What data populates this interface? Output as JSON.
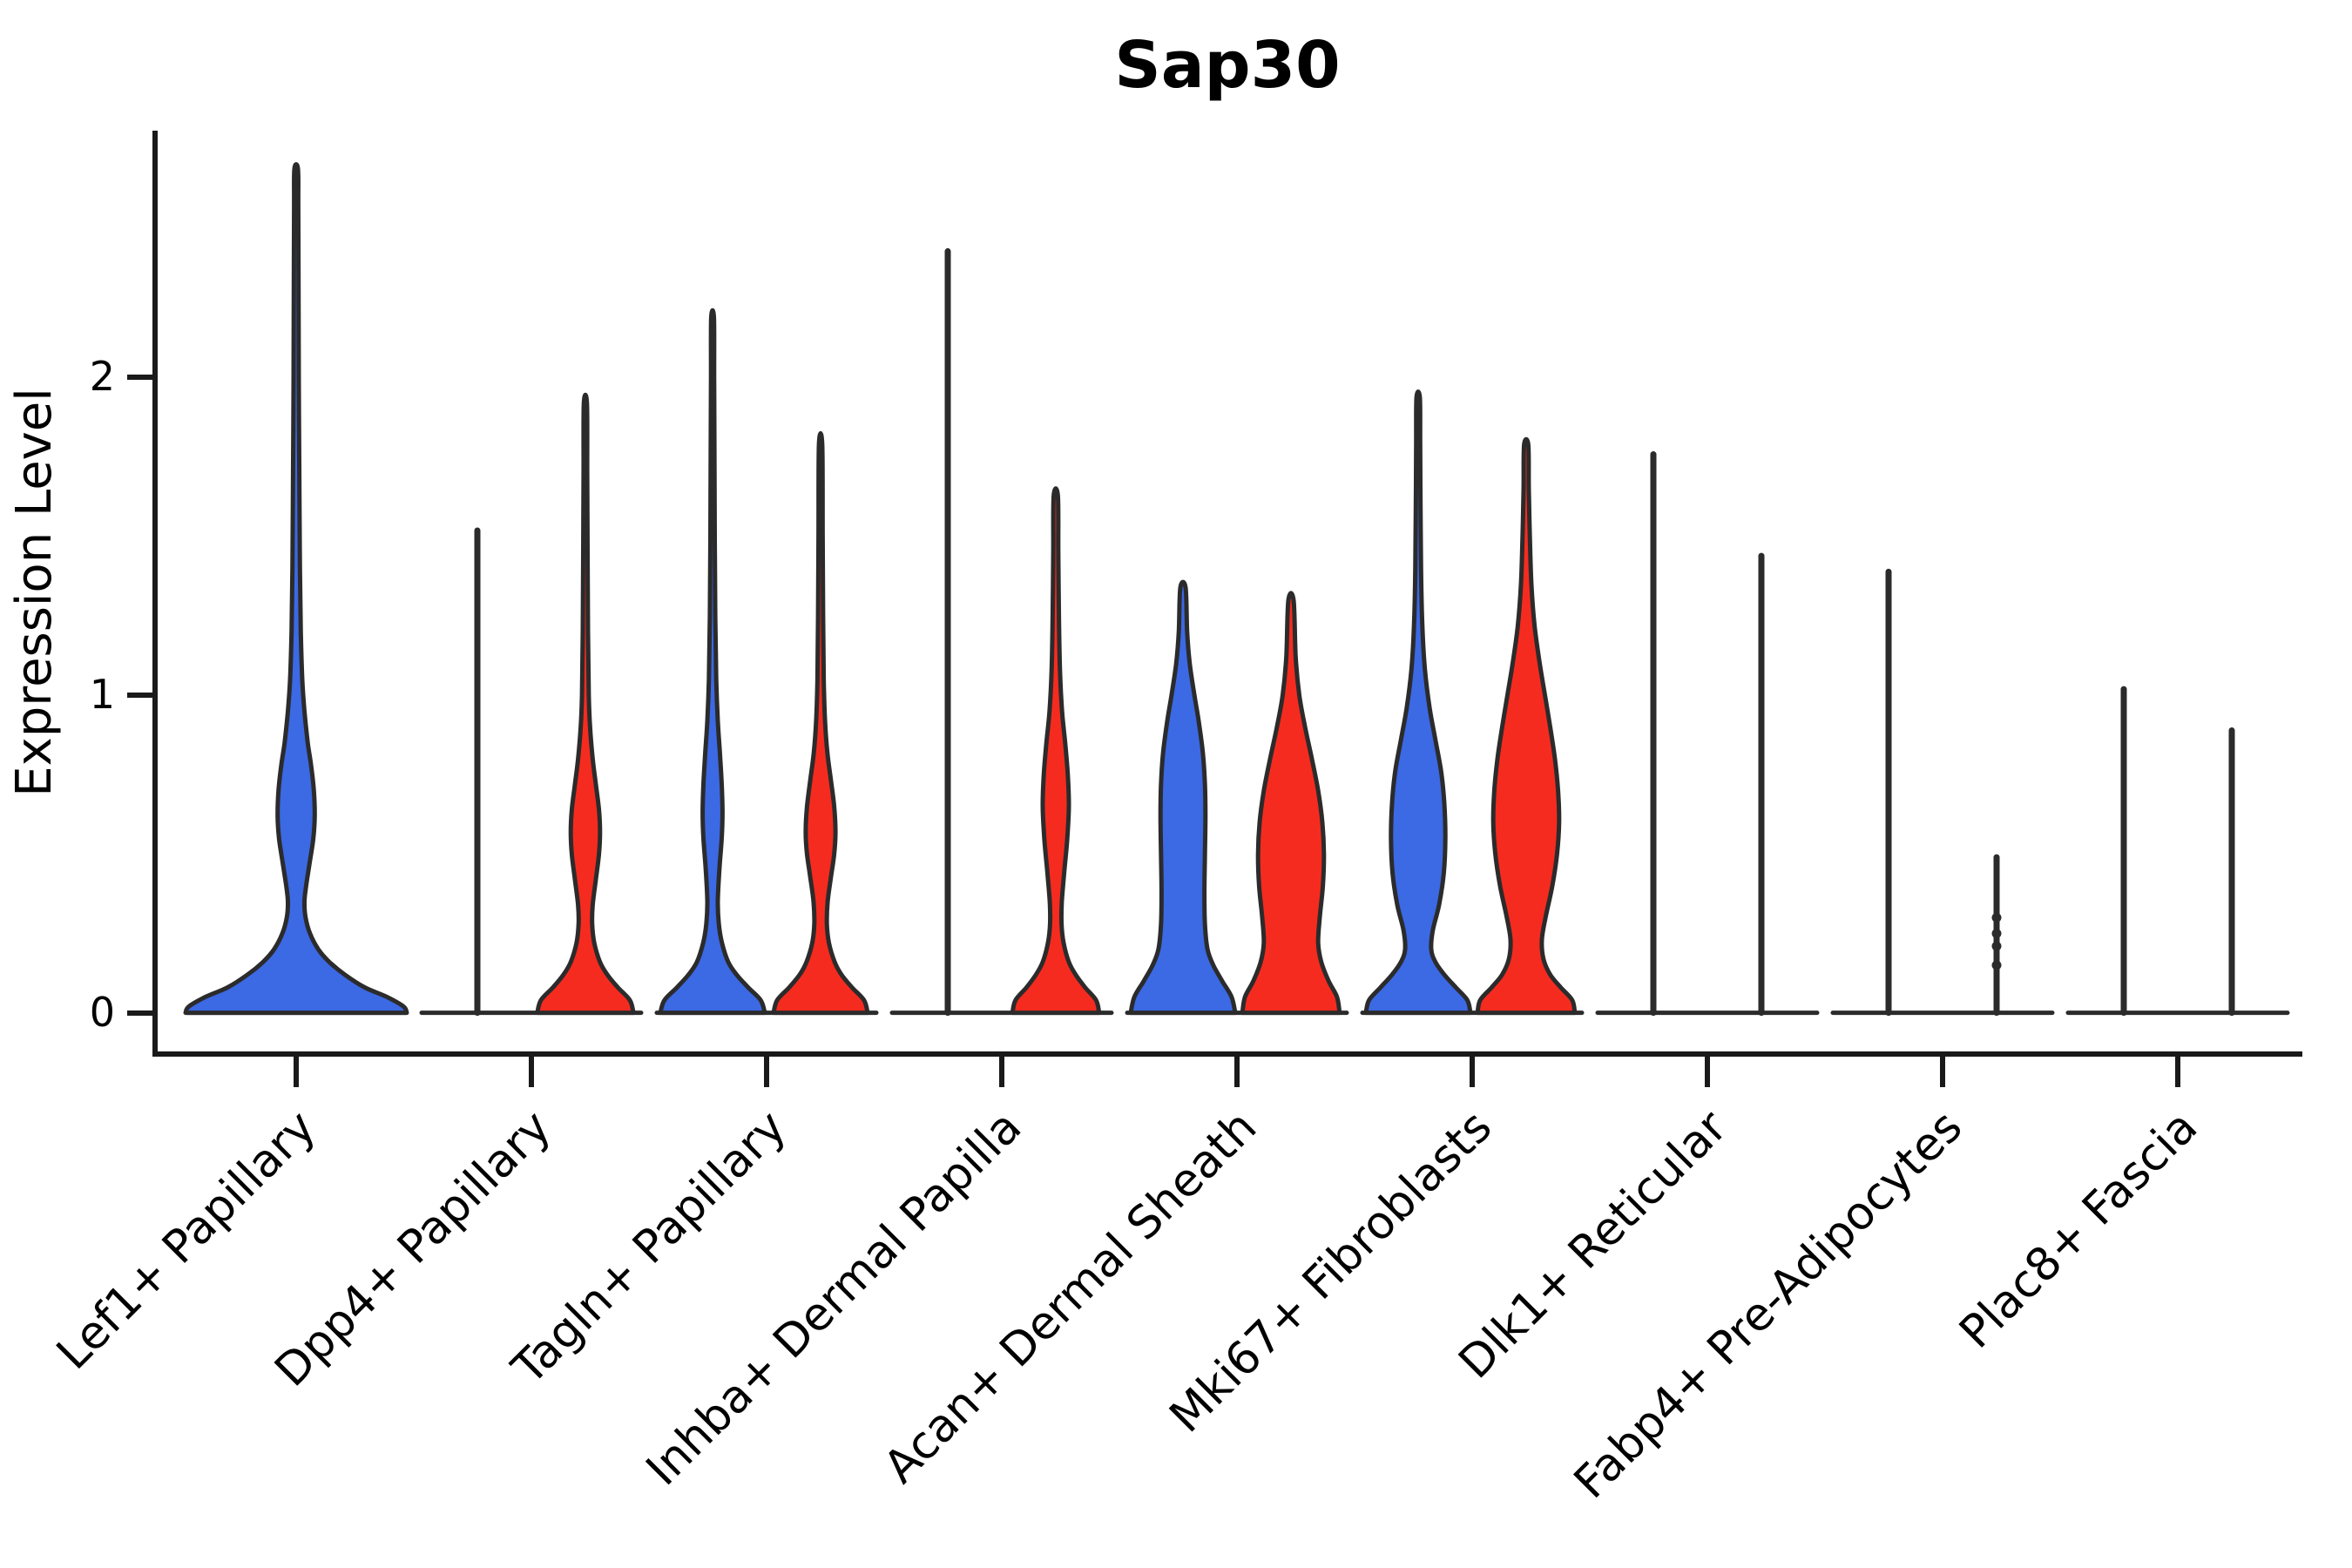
{
  "chart_data": {
    "type": "violin",
    "title": "Sap30",
    "xlabel": "",
    "ylabel": "Expression Level",
    "ytick_labels": [
      "0",
      "1",
      "2"
    ],
    "ytick_values": [
      0,
      1,
      2
    ],
    "ylim": [
      -0.13,
      2.78
    ],
    "grid": "off",
    "legend": "none",
    "categories": [
      "Lef1+ Papillary",
      "Dpp4+ Papillary",
      "Tagln+ Papillary",
      "Inhba+ Dermal Papilla",
      "Acan+ Dermal Sheath",
      "Mki67+ Fibroblasts",
      "Dlk1+ Reticular",
      "Fabp4+ Pre-Adipocytes",
      "Plac8+ Fascia"
    ],
    "split_colors": {
      "blue": "#3C69E4",
      "red": "#F62B20"
    },
    "outline_color": "#2B2B2B",
    "violins": [
      {
        "category": "Lef1+ Papillary",
        "split": "blue",
        "style": "density",
        "max": 2.66,
        "profile": [
          [
            0,
            1
          ],
          [
            0.02,
            0.97
          ],
          [
            0.05,
            0.82
          ],
          [
            0.08,
            0.62
          ],
          [
            0.12,
            0.44
          ],
          [
            0.16,
            0.3
          ],
          [
            0.2,
            0.2
          ],
          [
            0.25,
            0.125
          ],
          [
            0.3,
            0.085
          ],
          [
            0.35,
            0.075
          ],
          [
            0.4,
            0.09
          ],
          [
            0.48,
            0.125
          ],
          [
            0.55,
            0.155
          ],
          [
            0.62,
            0.168
          ],
          [
            0.7,
            0.16
          ],
          [
            0.78,
            0.135
          ],
          [
            0.85,
            0.105
          ],
          [
            0.95,
            0.075
          ],
          [
            1.05,
            0.055
          ],
          [
            1.2,
            0.042
          ],
          [
            1.4,
            0.034
          ],
          [
            1.7,
            0.028
          ],
          [
            2.0,
            0.024
          ],
          [
            2.3,
            0.021
          ],
          [
            2.55,
            0.019
          ],
          [
            2.66,
            0.016
          ]
        ]
      },
      {
        "category": "Dpp4+ Papillary",
        "split": "blue",
        "style": "spike",
        "max": 1.52
      },
      {
        "category": "Dpp4+ Papillary",
        "split": "red",
        "style": "density",
        "max": 1.92,
        "profile": [
          [
            0,
            0.92
          ],
          [
            0.04,
            0.85
          ],
          [
            0.08,
            0.62
          ],
          [
            0.12,
            0.42
          ],
          [
            0.16,
            0.28
          ],
          [
            0.22,
            0.17
          ],
          [
            0.28,
            0.13
          ],
          [
            0.34,
            0.14
          ],
          [
            0.42,
            0.2
          ],
          [
            0.5,
            0.26
          ],
          [
            0.57,
            0.28
          ],
          [
            0.64,
            0.26
          ],
          [
            0.72,
            0.2
          ],
          [
            0.8,
            0.14
          ],
          [
            0.9,
            0.09
          ],
          [
            1.0,
            0.065
          ],
          [
            1.2,
            0.05
          ],
          [
            1.45,
            0.042
          ],
          [
            1.7,
            0.035
          ],
          [
            1.92,
            0.03
          ]
        ]
      },
      {
        "category": "Tagln+ Papillary",
        "split": "blue",
        "style": "density",
        "max": 2.19,
        "profile": [
          [
            0,
            1
          ],
          [
            0.04,
            0.92
          ],
          [
            0.08,
            0.68
          ],
          [
            0.12,
            0.46
          ],
          [
            0.16,
            0.3
          ],
          [
            0.22,
            0.18
          ],
          [
            0.28,
            0.12
          ],
          [
            0.35,
            0.1
          ],
          [
            0.45,
            0.13
          ],
          [
            0.55,
            0.175
          ],
          [
            0.63,
            0.19
          ],
          [
            0.72,
            0.175
          ],
          [
            0.82,
            0.14
          ],
          [
            0.92,
            0.1
          ],
          [
            1.05,
            0.07
          ],
          [
            1.25,
            0.052
          ],
          [
            1.5,
            0.042
          ],
          [
            1.8,
            0.035
          ],
          [
            2.0,
            0.03
          ],
          [
            2.19,
            0.026
          ]
        ]
      },
      {
        "category": "Tagln+ Papillary",
        "split": "red",
        "style": "density",
        "max": 1.79,
        "profile": [
          [
            0,
            0.9
          ],
          [
            0.04,
            0.83
          ],
          [
            0.08,
            0.6
          ],
          [
            0.12,
            0.4
          ],
          [
            0.16,
            0.27
          ],
          [
            0.22,
            0.16
          ],
          [
            0.28,
            0.12
          ],
          [
            0.35,
            0.135
          ],
          [
            0.43,
            0.2
          ],
          [
            0.5,
            0.26
          ],
          [
            0.57,
            0.285
          ],
          [
            0.65,
            0.26
          ],
          [
            0.73,
            0.2
          ],
          [
            0.82,
            0.13
          ],
          [
            0.92,
            0.085
          ],
          [
            1.05,
            0.06
          ],
          [
            1.25,
            0.048
          ],
          [
            1.5,
            0.04
          ],
          [
            1.79,
            0.032
          ]
        ]
      },
      {
        "category": "Inhba+ Dermal Papilla",
        "split": "blue",
        "style": "spike",
        "max": 2.4
      },
      {
        "category": "Inhba+ Dermal Papilla",
        "split": "red",
        "style": "density",
        "max": 1.63,
        "profile": [
          [
            0,
            0.83
          ],
          [
            0.04,
            0.77
          ],
          [
            0.08,
            0.56
          ],
          [
            0.12,
            0.38
          ],
          [
            0.16,
            0.25
          ],
          [
            0.22,
            0.15
          ],
          [
            0.28,
            0.11
          ],
          [
            0.35,
            0.115
          ],
          [
            0.45,
            0.165
          ],
          [
            0.55,
            0.22
          ],
          [
            0.65,
            0.25
          ],
          [
            0.75,
            0.23
          ],
          [
            0.85,
            0.18
          ],
          [
            0.95,
            0.12
          ],
          [
            1.08,
            0.08
          ],
          [
            1.25,
            0.06
          ],
          [
            1.45,
            0.048
          ],
          [
            1.63,
            0.04
          ]
        ]
      },
      {
        "category": "Acan+ Dermal Sheath",
        "split": "blue",
        "style": "density",
        "max": 1.34,
        "profile": [
          [
            0,
            1
          ],
          [
            0.05,
            0.93
          ],
          [
            0.1,
            0.75
          ],
          [
            0.15,
            0.58
          ],
          [
            0.2,
            0.47
          ],
          [
            0.28,
            0.42
          ],
          [
            0.38,
            0.41
          ],
          [
            0.5,
            0.42
          ],
          [
            0.62,
            0.43
          ],
          [
            0.72,
            0.42
          ],
          [
            0.82,
            0.38
          ],
          [
            0.92,
            0.3
          ],
          [
            1.0,
            0.22
          ],
          [
            1.1,
            0.13
          ],
          [
            1.2,
            0.08
          ],
          [
            1.34,
            0.05
          ]
        ]
      },
      {
        "category": "Acan+ Dermal Sheath",
        "split": "red",
        "style": "density",
        "max": 1.3,
        "profile": [
          [
            0,
            0.93
          ],
          [
            0.05,
            0.88
          ],
          [
            0.1,
            0.72
          ],
          [
            0.16,
            0.58
          ],
          [
            0.22,
            0.52
          ],
          [
            0.3,
            0.55
          ],
          [
            0.4,
            0.61
          ],
          [
            0.5,
            0.63
          ],
          [
            0.6,
            0.6
          ],
          [
            0.7,
            0.52
          ],
          [
            0.8,
            0.4
          ],
          [
            0.9,
            0.27
          ],
          [
            1.0,
            0.16
          ],
          [
            1.12,
            0.09
          ],
          [
            1.3,
            0.05
          ]
        ]
      },
      {
        "category": "Mki67+ Fibroblasts",
        "split": "blue",
        "style": "density",
        "max": 1.94,
        "profile": [
          [
            0,
            1
          ],
          [
            0.04,
            0.94
          ],
          [
            0.08,
            0.72
          ],
          [
            0.12,
            0.5
          ],
          [
            0.16,
            0.33
          ],
          [
            0.2,
            0.25
          ],
          [
            0.26,
            0.28
          ],
          [
            0.34,
            0.4
          ],
          [
            0.44,
            0.49
          ],
          [
            0.55,
            0.52
          ],
          [
            0.66,
            0.5
          ],
          [
            0.76,
            0.44
          ],
          [
            0.86,
            0.33
          ],
          [
            0.96,
            0.22
          ],
          [
            1.08,
            0.13
          ],
          [
            1.22,
            0.08
          ],
          [
            1.4,
            0.055
          ],
          [
            1.6,
            0.045
          ],
          [
            1.8,
            0.038
          ],
          [
            1.94,
            0.032
          ]
        ]
      },
      {
        "category": "Mki67+ Fibroblasts",
        "split": "red",
        "style": "density",
        "max": 1.79,
        "profile": [
          [
            0,
            0.93
          ],
          [
            0.04,
            0.88
          ],
          [
            0.08,
            0.66
          ],
          [
            0.12,
            0.46
          ],
          [
            0.17,
            0.33
          ],
          [
            0.23,
            0.3
          ],
          [
            0.3,
            0.37
          ],
          [
            0.4,
            0.5
          ],
          [
            0.5,
            0.59
          ],
          [
            0.6,
            0.63
          ],
          [
            0.7,
            0.61
          ],
          [
            0.8,
            0.55
          ],
          [
            0.9,
            0.46
          ],
          [
            1.0,
            0.36
          ],
          [
            1.1,
            0.26
          ],
          [
            1.22,
            0.16
          ],
          [
            1.35,
            0.1
          ],
          [
            1.5,
            0.07
          ],
          [
            1.65,
            0.05
          ],
          [
            1.79,
            0.04
          ]
        ]
      },
      {
        "category": "Dlk1+ Reticular",
        "split": "blue",
        "style": "spike",
        "max": 1.76
      },
      {
        "category": "Dlk1+ Reticular",
        "split": "red",
        "style": "spike",
        "max": 1.44
      },
      {
        "category": "Fabp4+ Pre-Adipocytes",
        "split": "blue",
        "style": "spike",
        "max": 1.39
      },
      {
        "category": "Fabp4+ Pre-Adipocytes",
        "split": "red",
        "style": "spike",
        "max": 0.49,
        "points": [
          0.3,
          0.25,
          0.21,
          0.15
        ]
      },
      {
        "category": "Plac8+ Fascia",
        "split": "blue",
        "style": "spike",
        "max": 1.02
      },
      {
        "category": "Plac8+ Fascia",
        "split": "red",
        "style": "spike",
        "max": 0.89
      }
    ]
  }
}
